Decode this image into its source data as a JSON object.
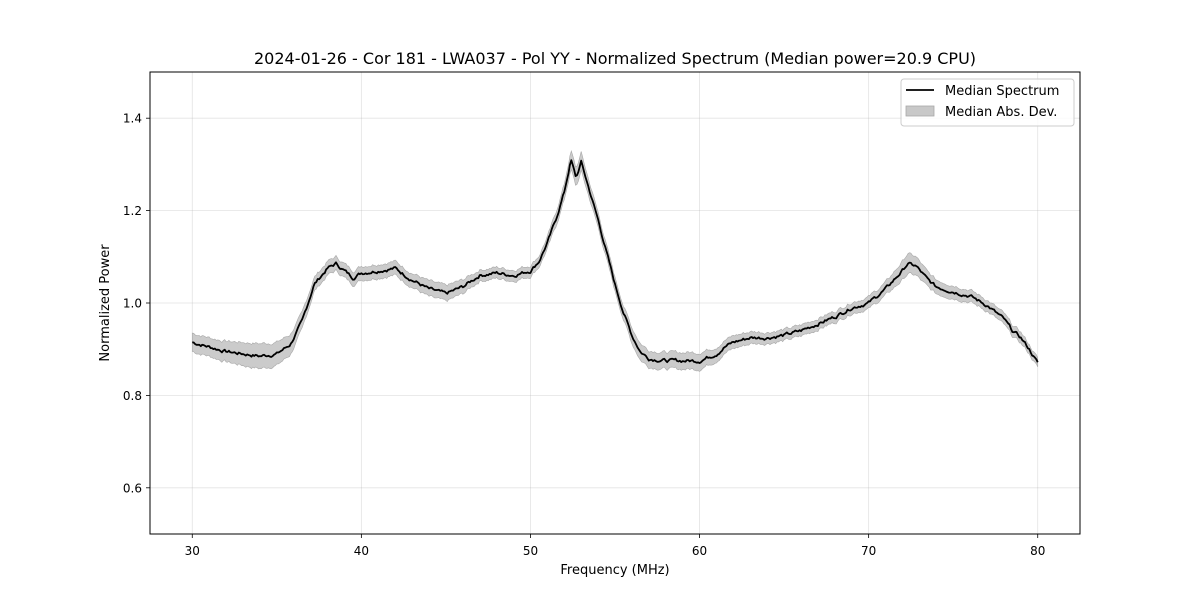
{
  "chart_data": {
    "type": "line",
    "title": "2024-01-26 - Cor 181 - LWA037 - Pol YY - Normalized Spectrum (Median power=20.9 CPU)",
    "xlabel": "Frequency (MHz)",
    "ylabel": "Normalized Power",
    "xlim": [
      27.5,
      82.5
    ],
    "ylim": [
      0.5,
      1.5
    ],
    "xticks": [
      30,
      40,
      50,
      60,
      70,
      80
    ],
    "yticks": [
      0.6,
      0.8,
      1.0,
      1.2,
      1.4
    ],
    "ytick_labels": [
      "0.6",
      "0.8",
      "1.0",
      "1.2",
      "1.4"
    ],
    "grid": true,
    "legend": {
      "position": "top-right",
      "entries": [
        "Median Spectrum",
        "Median Abs. Dev."
      ]
    },
    "series": [
      {
        "name": "Median Spectrum",
        "color": "#000000",
        "x": [
          30,
          31,
          32,
          33,
          34,
          35,
          35.8,
          36.5,
          37.2,
          38.0,
          38.5,
          39.0,
          39.5,
          40.0,
          41.0,
          42.0,
          43.0,
          44.0,
          45.0,
          46.0,
          47.0,
          48.0,
          49.0,
          50.0,
          50.5,
          51.0,
          51.5,
          52.0,
          52.4,
          52.7,
          53.0,
          53.4,
          54.0,
          54.5,
          55.0,
          55.5,
          56.0,
          56.5,
          57.0,
          58.0,
          59.0,
          60.0,
          61.0,
          61.5,
          62.0,
          63.0,
          64.0,
          65.0,
          66.0,
          67.0,
          68.0,
          69.0,
          70.0,
          71.0,
          72.0,
          72.3,
          72.8,
          73.5,
          74.0,
          75.0,
          76.0,
          77.0,
          78.0,
          78.5,
          79.0,
          79.5,
          80.0
        ],
        "values": [
          0.915,
          0.905,
          0.895,
          0.89,
          0.885,
          0.89,
          0.91,
          0.96,
          1.04,
          1.075,
          1.085,
          1.07,
          1.055,
          1.065,
          1.07,
          1.075,
          1.05,
          1.03,
          1.02,
          1.035,
          1.06,
          1.065,
          1.06,
          1.07,
          1.09,
          1.13,
          1.18,
          1.24,
          1.31,
          1.27,
          1.305,
          1.255,
          1.18,
          1.11,
          1.04,
          0.98,
          0.93,
          0.895,
          0.88,
          0.875,
          0.875,
          0.875,
          0.89,
          0.905,
          0.915,
          0.925,
          0.925,
          0.93,
          0.94,
          0.955,
          0.97,
          0.99,
          1.0,
          1.03,
          1.07,
          1.085,
          1.08,
          1.05,
          1.035,
          1.025,
          1.015,
          0.995,
          0.965,
          0.94,
          0.925,
          0.9,
          0.87
        ]
      },
      {
        "name": "Median Abs. Dev.",
        "type": "band",
        "color": "#c8c8c8",
        "x": [
          30,
          31,
          32,
          33,
          34,
          35,
          35.8,
          36.5,
          37.2,
          38.0,
          38.5,
          39.0,
          39.5,
          40.0,
          41.0,
          42.0,
          43.0,
          44.0,
          45.0,
          46.0,
          47.0,
          48.0,
          49.0,
          50.0,
          50.5,
          51.0,
          51.5,
          52.0,
          52.4,
          52.7,
          53.0,
          53.4,
          54.0,
          54.5,
          55.0,
          55.5,
          56.0,
          56.5,
          57.0,
          58.0,
          59.0,
          60.0,
          61.0,
          61.5,
          62.0,
          63.0,
          64.0,
          65.0,
          66.0,
          67.0,
          68.0,
          69.0,
          70.0,
          71.0,
          72.0,
          72.3,
          72.8,
          73.5,
          74.0,
          75.0,
          76.0,
          77.0,
          78.0,
          78.5,
          79.0,
          79.5,
          80.0
        ],
        "deviation": [
          0.02,
          0.02,
          0.022,
          0.025,
          0.027,
          0.025,
          0.022,
          0.018,
          0.015,
          0.015,
          0.015,
          0.015,
          0.015,
          0.015,
          0.015,
          0.015,
          0.015,
          0.017,
          0.017,
          0.015,
          0.012,
          0.012,
          0.012,
          0.012,
          0.012,
          0.013,
          0.015,
          0.017,
          0.02,
          0.02,
          0.02,
          0.018,
          0.016,
          0.015,
          0.015,
          0.015,
          0.017,
          0.018,
          0.018,
          0.018,
          0.018,
          0.018,
          0.015,
          0.014,
          0.014,
          0.013,
          0.012,
          0.012,
          0.012,
          0.012,
          0.012,
          0.012,
          0.013,
          0.014,
          0.02,
          0.022,
          0.02,
          0.016,
          0.015,
          0.014,
          0.013,
          0.012,
          0.012,
          0.012,
          0.012,
          0.01,
          0.01
        ]
      }
    ]
  }
}
